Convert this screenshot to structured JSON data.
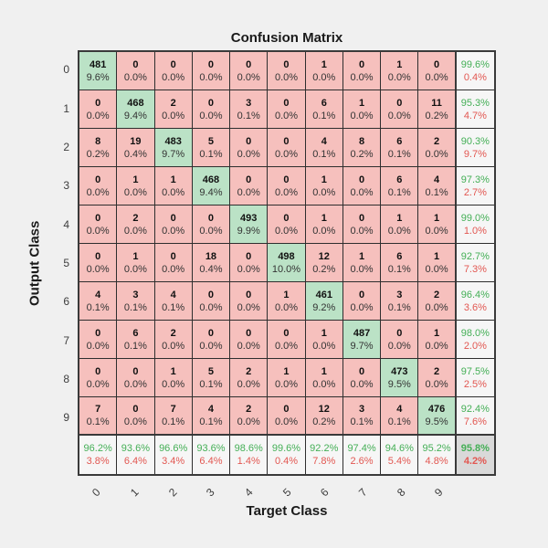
{
  "title": "Confusion Matrix",
  "axes": {
    "xlabel": "Target Class",
    "ylabel": "Output Class"
  },
  "chart_data": {
    "type": "heatmap",
    "subtype": "confusion-matrix",
    "title": "Confusion Matrix",
    "xlabel": "Target Class",
    "ylabel": "Output Class",
    "x_tick_labels": [
      "0",
      "1",
      "2",
      "3",
      "4",
      "5",
      "6",
      "7",
      "8",
      "9"
    ],
    "y_tick_labels": [
      "0",
      "1",
      "2",
      "3",
      "4",
      "5",
      "6",
      "7",
      "8",
      "9"
    ],
    "counts": [
      [
        481,
        0,
        0,
        0,
        0,
        0,
        1,
        0,
        1,
        0
      ],
      [
        0,
        468,
        2,
        0,
        3,
        0,
        6,
        1,
        0,
        11
      ],
      [
        8,
        19,
        483,
        5,
        0,
        0,
        4,
        8,
        6,
        2
      ],
      [
        0,
        1,
        1,
        468,
        0,
        0,
        1,
        0,
        6,
        4
      ],
      [
        0,
        2,
        0,
        0,
        493,
        0,
        1,
        0,
        1,
        1
      ],
      [
        0,
        1,
        0,
        18,
        0,
        498,
        12,
        1,
        6,
        1
      ],
      [
        4,
        3,
        4,
        0,
        0,
        1,
        461,
        0,
        3,
        2
      ],
      [
        0,
        6,
        2,
        0,
        0,
        0,
        1,
        487,
        0,
        1
      ],
      [
        0,
        0,
        1,
        5,
        2,
        1,
        1,
        0,
        473,
        2
      ],
      [
        7,
        0,
        7,
        4,
        2,
        0,
        12,
        3,
        4,
        476
      ]
    ],
    "percent_labels": [
      [
        "9.6%",
        "0.0%",
        "0.0%",
        "0.0%",
        "0.0%",
        "0.0%",
        "0.0%",
        "0.0%",
        "0.0%",
        "0.0%"
      ],
      [
        "0.0%",
        "9.4%",
        "0.0%",
        "0.0%",
        "0.1%",
        "0.0%",
        "0.1%",
        "0.0%",
        "0.0%",
        "0.2%"
      ],
      [
        "0.2%",
        "0.4%",
        "9.7%",
        "0.1%",
        "0.0%",
        "0.0%",
        "0.1%",
        "0.2%",
        "0.1%",
        "0.0%"
      ],
      [
        "0.0%",
        "0.0%",
        "0.0%",
        "9.4%",
        "0.0%",
        "0.0%",
        "0.0%",
        "0.0%",
        "0.1%",
        "0.1%"
      ],
      [
        "0.0%",
        "0.0%",
        "0.0%",
        "0.0%",
        "9.9%",
        "0.0%",
        "0.0%",
        "0.0%",
        "0.0%",
        "0.0%"
      ],
      [
        "0.0%",
        "0.0%",
        "0.0%",
        "0.4%",
        "0.0%",
        "10.0%",
        "0.2%",
        "0.0%",
        "0.1%",
        "0.0%"
      ],
      [
        "0.1%",
        "0.1%",
        "0.1%",
        "0.0%",
        "0.0%",
        "0.0%",
        "9.2%",
        "0.0%",
        "0.1%",
        "0.0%"
      ],
      [
        "0.0%",
        "0.1%",
        "0.0%",
        "0.0%",
        "0.0%",
        "0.0%",
        "0.0%",
        "9.7%",
        "0.0%",
        "0.0%"
      ],
      [
        "0.0%",
        "0.0%",
        "0.0%",
        "0.1%",
        "0.0%",
        "0.0%",
        "0.0%",
        "0.0%",
        "9.5%",
        "0.0%"
      ],
      [
        "0.1%",
        "0.0%",
        "0.1%",
        "0.1%",
        "0.0%",
        "0.0%",
        "0.2%",
        "0.1%",
        "0.1%",
        "9.5%"
      ]
    ],
    "row_summary": [
      [
        "99.6%",
        "0.4%"
      ],
      [
        "95.3%",
        "4.7%"
      ],
      [
        "90.3%",
        "9.7%"
      ],
      [
        "97.3%",
        "2.7%"
      ],
      [
        "99.0%",
        "1.0%"
      ],
      [
        "92.7%",
        "7.3%"
      ],
      [
        "96.4%",
        "3.6%"
      ],
      [
        "98.0%",
        "2.0%"
      ],
      [
        "97.5%",
        "2.5%"
      ],
      [
        "92.4%",
        "7.6%"
      ]
    ],
    "col_summary": [
      [
        "96.2%",
        "3.8%"
      ],
      [
        "93.6%",
        "6.4%"
      ],
      [
        "96.6%",
        "3.4%"
      ],
      [
        "93.6%",
        "6.4%"
      ],
      [
        "98.6%",
        "1.4%"
      ],
      [
        "99.6%",
        "0.4%"
      ],
      [
        "92.2%",
        "7.8%"
      ],
      [
        "97.4%",
        "2.6%"
      ],
      [
        "94.6%",
        "5.4%"
      ],
      [
        "95.2%",
        "4.8%"
      ]
    ],
    "overall": [
      "95.8%",
      "4.2%"
    ],
    "layout": {
      "grid": "on",
      "legend": "none",
      "x_tick_rotation_deg": 45
    }
  },
  "colors": {
    "figure_bg": "#F0F0F0",
    "diagonal_cell": "#BBE2C6",
    "offdiagonal_cell": "#F6C0BD",
    "summary_cell": "#F6F6F6",
    "corner_cell": "#D9D9D9",
    "good_text": "#44AF56",
    "bad_text": "#E25751",
    "grid_line": "#2E2E2E",
    "outer_border": "#3A3A3A"
  }
}
